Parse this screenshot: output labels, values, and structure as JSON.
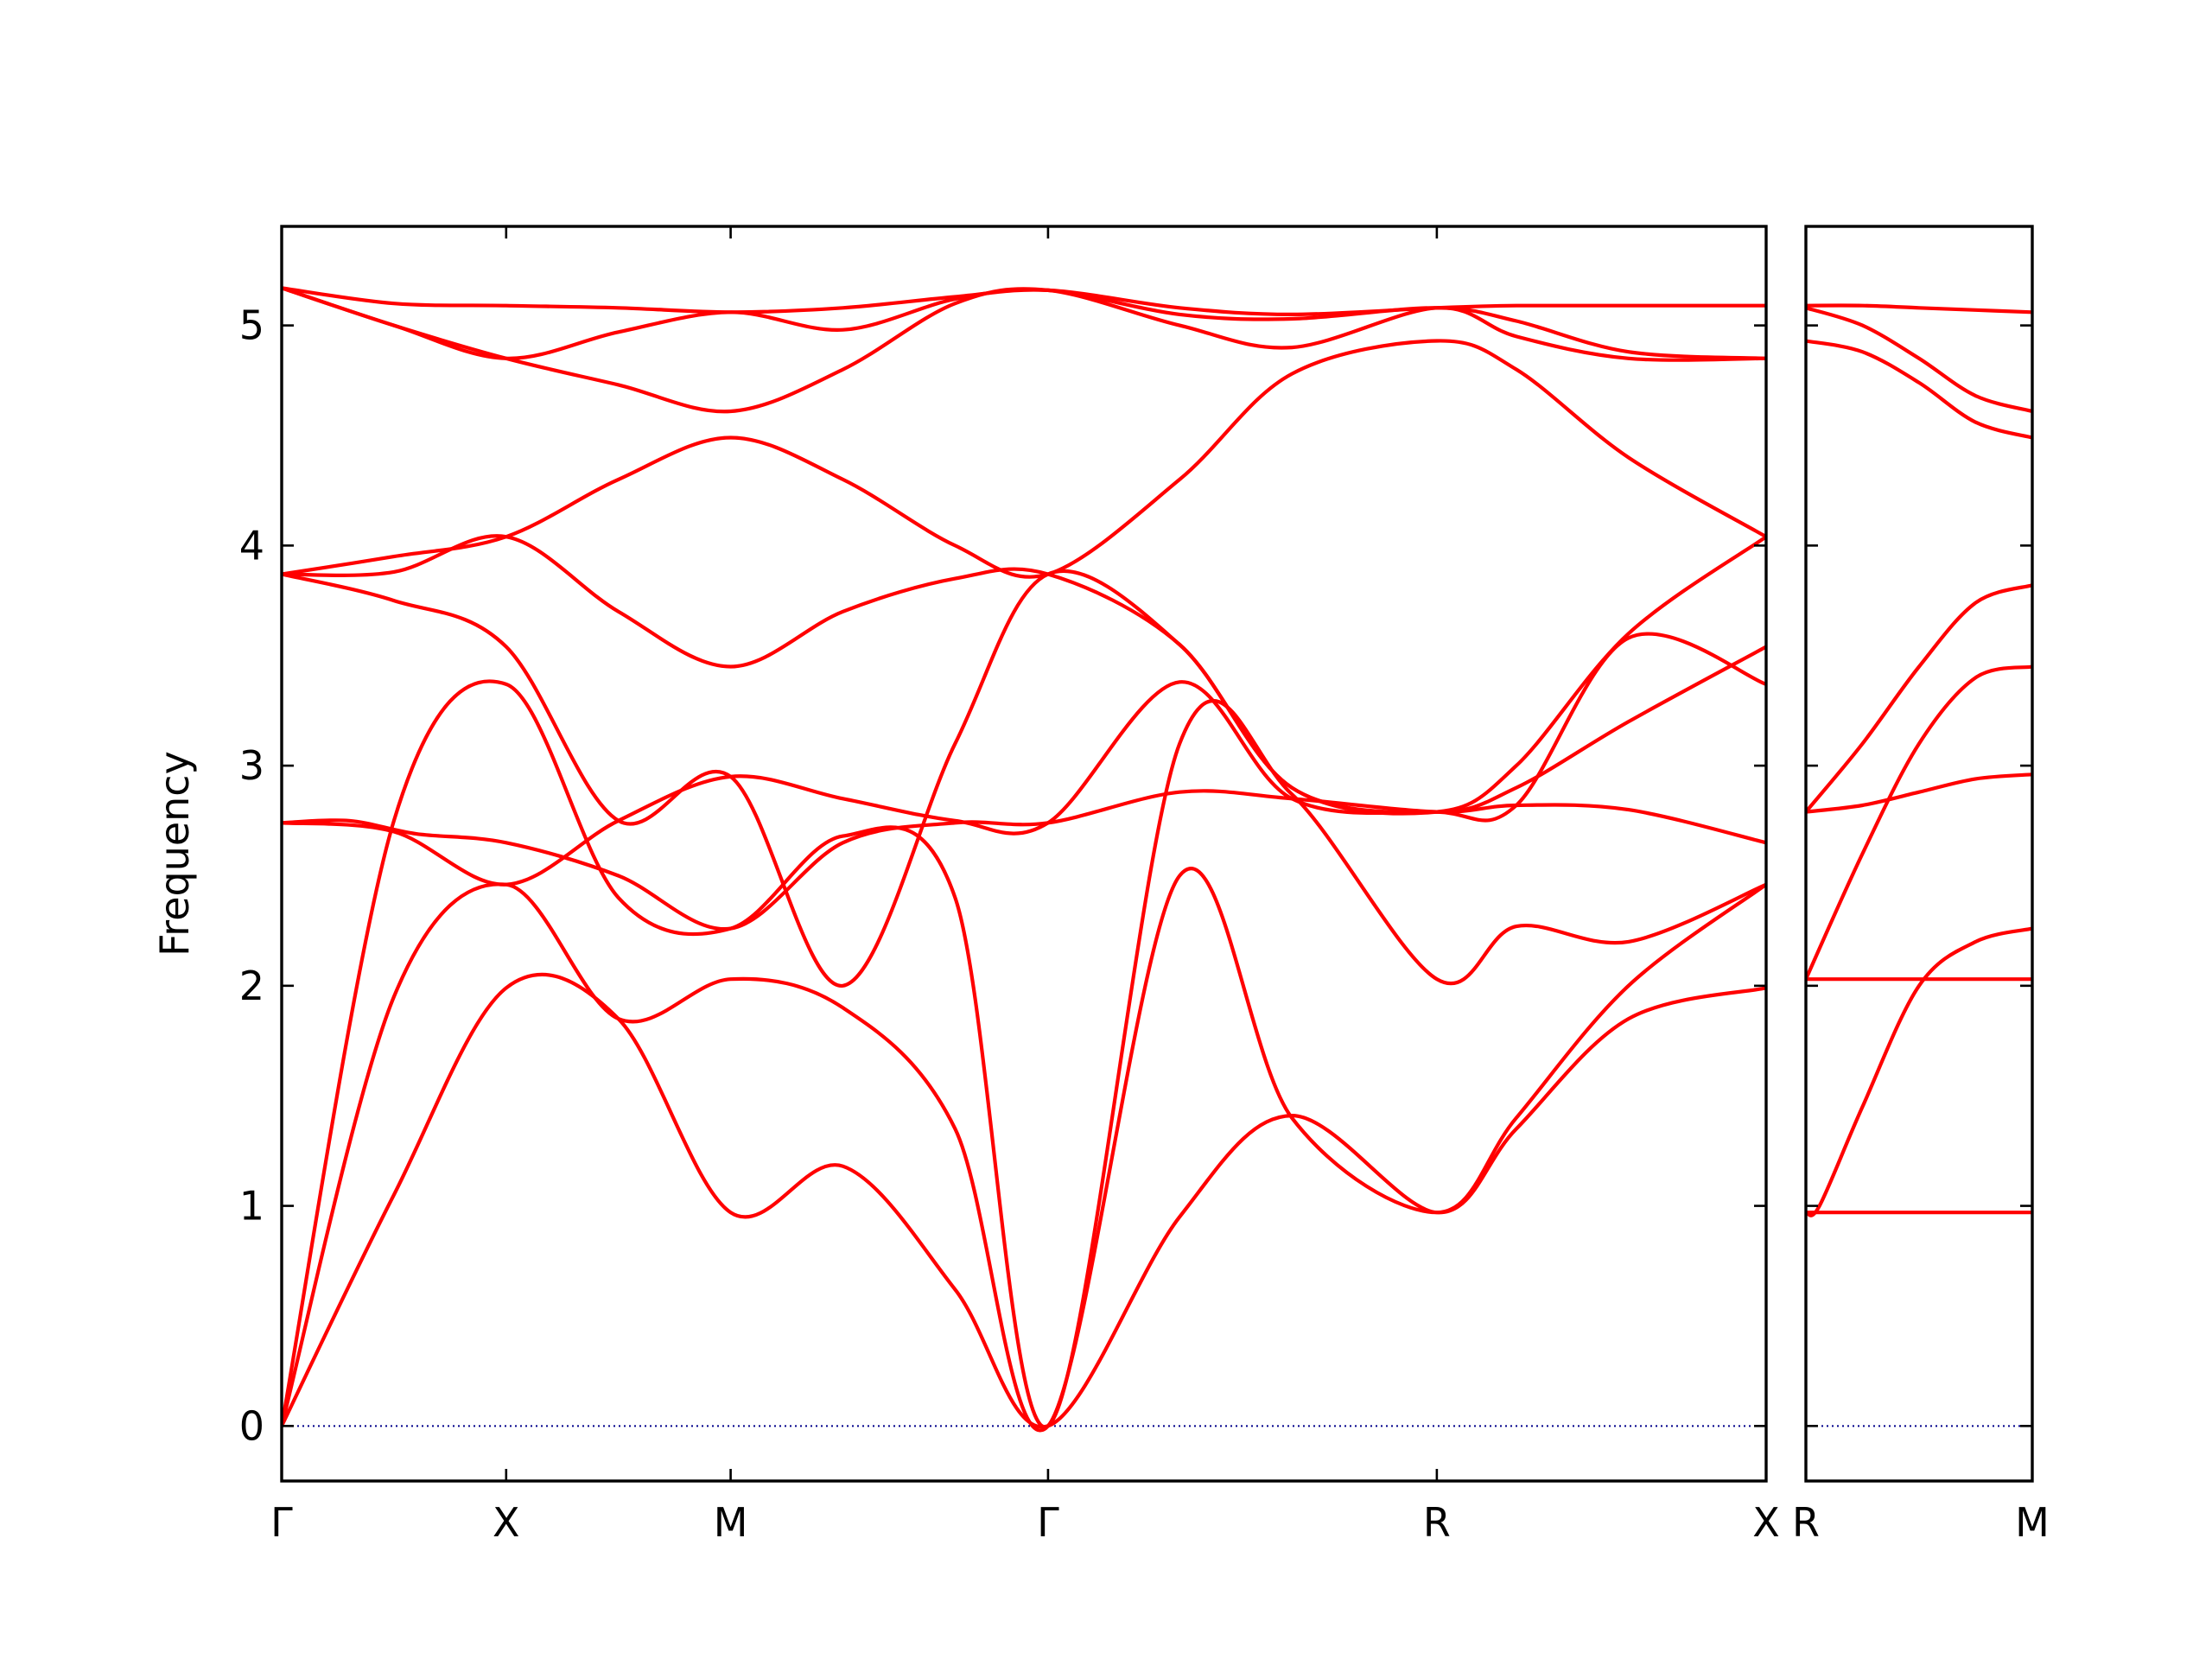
{
  "chart_data": {
    "type": "line",
    "title": "",
    "ylabel": "Frequency",
    "xlabel": "",
    "ylim": [
      -0.25,
      5.45
    ],
    "yticks": [
      0,
      1,
      2,
      3,
      4,
      5
    ],
    "grid": false,
    "legend": "none",
    "line_color": "#ff0000",
    "zero_line_color": "#00008b",
    "panels": [
      {
        "id": "main",
        "segments": [
          "Γ-X",
          "X-M",
          "M-Γ",
          "Γ-R",
          "R-X"
        ],
        "xlim": [
          0,
          6.613
        ],
        "xticks": [
          {
            "x": 0,
            "label": "Γ"
          },
          {
            "x": 1.0,
            "label": "X"
          },
          {
            "x": 2.0,
            "label": "M"
          },
          {
            "x": 3.414,
            "label": "Γ"
          },
          {
            "x": 5.146,
            "label": "R"
          },
          {
            "x": 6.613,
            "label": "X"
          }
        ],
        "bands": [
          {
            "x": [
              0,
              0.5,
              1.0,
              1.5,
              2.0,
              2.5,
              3.0,
              3.414,
              4.0,
              4.5,
              5.146,
              5.5,
              6.0,
              6.613
            ],
            "y": [
              0,
              1.05,
              1.99,
              1.85,
              0.97,
              1.18,
              0.62,
              0,
              0.95,
              1.41,
              0.97,
              1.35,
              1.85,
              1.99
            ]
          },
          {
            "x": [
              0,
              0.5,
              1.0,
              1.5,
              2.0,
              2.5,
              3.0,
              3.414,
              4.0,
              4.5,
              5.146,
              5.5,
              6.0,
              6.613
            ],
            "y": [
              0,
              1.95,
              2.46,
              1.85,
              2.03,
              1.9,
              1.35,
              0,
              2.5,
              1.4,
              0.97,
              1.4,
              2.0,
              2.46
            ]
          },
          {
            "x": [
              0,
              0.5,
              1.0,
              1.5,
              2.0,
              2.5,
              3.0,
              3.414,
              4.0,
              4.5,
              5.146,
              5.5,
              6.0,
              6.613
            ],
            "y": [
              0,
              2.75,
              3.37,
              2.4,
              2.26,
              2.68,
              2.4,
              0,
              3.1,
              2.87,
              2.03,
              2.27,
              2.2,
              2.46
            ]
          },
          {
            "x": [
              0,
              0.3,
              0.6,
              1.0,
              1.5,
              2.0,
              2.5,
              3.0,
              3.414,
              4.0,
              4.5,
              5.146,
              5.5,
              6.0,
              6.613
            ],
            "y": [
              2.74,
              2.75,
              2.69,
              2.65,
              2.5,
              2.26,
              2.65,
              2.74,
              2.74,
              2.88,
              2.85,
              2.79,
              2.82,
              2.8,
              2.65
            ]
          },
          {
            "x": [
              0,
              0.5,
              1.0,
              1.5,
              2.0,
              2.5,
              3.0,
              3.414,
              4.0,
              4.5,
              5.146,
              5.5,
              6.0,
              6.613
            ],
            "y": [
              2.74,
              2.7,
              2.46,
              2.75,
              2.95,
              2.85,
              2.75,
              2.74,
              3.38,
              2.85,
              2.79,
              2.82,
              3.58,
              3.37
            ]
          },
          {
            "x": [
              0,
              0.5,
              1.0,
              1.5,
              2.0,
              2.5,
              3.0,
              3.414,
              4.0,
              4.5,
              5.146,
              5.5,
              6.0,
              6.613
            ],
            "y": [
              3.87,
              3.75,
              3.54,
              2.75,
              2.95,
              2.0,
              3.1,
              3.87,
              3.55,
              2.9,
              2.79,
              2.9,
              3.2,
              3.54
            ]
          },
          {
            "x": [
              0,
              0.5,
              1.0,
              1.5,
              2.0,
              2.5,
              3.0,
              3.414,
              4.0,
              4.5,
              5.146,
              5.5,
              6.0,
              6.613
            ],
            "y": [
              3.87,
              3.88,
              4.04,
              3.7,
              3.45,
              3.7,
              3.85,
              3.87,
              3.55,
              2.9,
              2.79,
              3.0,
              3.6,
              4.04
            ]
          },
          {
            "x": [
              0,
              0.5,
              1.0,
              1.5,
              2.0,
              2.5,
              3.0,
              3.414,
              4.0,
              4.5,
              5.146,
              5.5,
              6.0,
              6.613
            ],
            "y": [
              3.87,
              3.95,
              4.04,
              4.3,
              4.49,
              4.3,
              4.0,
              3.87,
              4.3,
              4.78,
              4.93,
              4.8,
              4.4,
              4.04
            ]
          },
          {
            "x": [
              0,
              0.5,
              1.0,
              1.5,
              2.0,
              2.5,
              3.0,
              3.414,
              4.0,
              4.5,
              5.146,
              5.5,
              6.0,
              6.613
            ],
            "y": [
              5.17,
              5.0,
              4.85,
              4.73,
              4.61,
              4.8,
              5.1,
              5.16,
              5.0,
              4.9,
              5.08,
              4.95,
              4.85,
              4.85
            ]
          },
          {
            "x": [
              0,
              0.5,
              1.0,
              1.5,
              2.0,
              2.5,
              3.0,
              3.414,
              4.0,
              4.5,
              5.146,
              5.5,
              6.0,
              6.613
            ],
            "y": [
              5.17,
              5.0,
              4.85,
              4.97,
              5.06,
              4.98,
              5.12,
              5.16,
              5.05,
              5.03,
              5.08,
              5.02,
              4.88,
              4.85
            ]
          },
          {
            "x": [
              0,
              0.5,
              1.0,
              1.5,
              2.0,
              2.5,
              3.0,
              3.414,
              4.0,
              4.5,
              5.146,
              5.5,
              6.0,
              6.613
            ],
            "y": [
              5.17,
              5.1,
              5.09,
              5.08,
              5.06,
              5.08,
              5.13,
              5.16,
              5.08,
              5.05,
              5.08,
              5.09,
              5.09,
              5.09
            ]
          }
        ]
      },
      {
        "id": "right",
        "segments": [
          "R-M"
        ],
        "xlim": [
          0,
          1.0
        ],
        "xticks": [
          {
            "x": 0,
            "label": "R"
          },
          {
            "x": 1.0,
            "label": "M"
          }
        ],
        "bands": [
          {
            "x": [
              0,
              0.25,
              0.5,
              0.75,
              1.0
            ],
            "y": [
              0.97,
              0.97,
              0.97,
              0.97,
              0.97
            ]
          },
          {
            "x": [
              0,
              0.06,
              0.25,
              0.5,
              0.75,
              1.0
            ],
            "y": [
              0.97,
              1.0,
              1.45,
              2.0,
              2.2,
              2.26
            ]
          },
          {
            "x": [
              0,
              0.25,
              0.5,
              0.75,
              1.0
            ],
            "y": [
              2.03,
              2.03,
              2.03,
              2.03,
              2.03
            ]
          },
          {
            "x": [
              0,
              0.25,
              0.5,
              0.75,
              1.0
            ],
            "y": [
              2.03,
              2.6,
              3.1,
              3.4,
              3.45
            ]
          },
          {
            "x": [
              0,
              0.25,
              0.5,
              0.75,
              1.0
            ],
            "y": [
              2.79,
              2.82,
              2.88,
              2.94,
              2.96
            ]
          },
          {
            "x": [
              0,
              0.25,
              0.5,
              0.75,
              1.0
            ],
            "y": [
              2.79,
              3.1,
              3.45,
              3.74,
              3.82
            ]
          },
          {
            "x": [
              0,
              0.25,
              0.5,
              0.75,
              1.0
            ],
            "y": [
              4.93,
              4.88,
              4.74,
              4.56,
              4.49
            ]
          },
          {
            "x": [
              0,
              0.25,
              0.5,
              0.75,
              1.0
            ],
            "y": [
              5.08,
              5.0,
              4.85,
              4.68,
              4.61
            ]
          },
          {
            "x": [
              0,
              0.25,
              0.5,
              0.75,
              1.0
            ],
            "y": [
              5.09,
              5.09,
              5.08,
              5.07,
              5.06
            ]
          }
        ]
      }
    ]
  }
}
